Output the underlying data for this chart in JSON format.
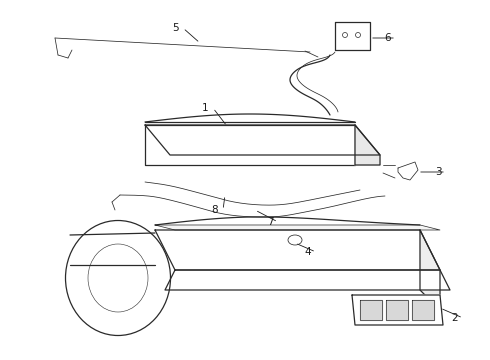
{
  "background_color": "#ffffff",
  "line_color": "#2a2a2a",
  "label_color": "#1a1a1a",
  "figsize": [
    4.9,
    3.6
  ],
  "dpi": 100,
  "label_fontsize": 7.5,
  "lw_main": 0.9,
  "lw_thin": 0.55
}
